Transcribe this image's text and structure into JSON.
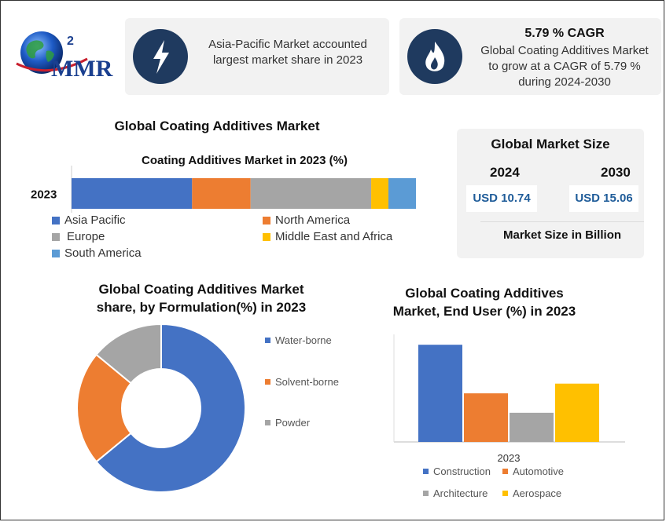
{
  "logo": {
    "text": "MMR"
  },
  "cards": {
    "asia": {
      "text_line1": "Asia-Pacific Market accounted",
      "text_line2": "largest market share in 2023"
    },
    "cagr": {
      "title": "5.79 % CAGR",
      "text_line1": "Global Coating Additives Market",
      "text_line2": "to grow at a CAGR of 5.79 %",
      "text_line3": "during 2024-2030"
    }
  },
  "section_title": "Global Coating Additives Market",
  "market_size": {
    "title": "Global Market Size",
    "year1": "2024",
    "year2": "2030",
    "value1": "USD 10.74",
    "value2": "USD 15.06",
    "footer": "Market Size in Billion"
  },
  "colors": {
    "blue": "#4472c4",
    "orange": "#ed7d31",
    "gray": "#a5a5a5",
    "yellow": "#ffc000",
    "lightblue": "#5b9bd5",
    "navy": "#1f3a5f",
    "value_blue": "#1f5c99"
  },
  "chart_data": [
    {
      "type": "bar",
      "orientation": "horizontal-stacked",
      "title": "Coating Additives Market in 2023 (%)",
      "categories": [
        "2023"
      ],
      "series": [
        {
          "name": "Asia Pacific",
          "values": [
            35
          ],
          "color": "#4472c4"
        },
        {
          "name": "North America",
          "values": [
            17
          ],
          "color": "#ed7d31"
        },
        {
          "name": "Europe",
          "values": [
            35
          ],
          "color": "#a5a5a5"
        },
        {
          "name": "Middle East and Africa",
          "values": [
            5
          ],
          "color": "#ffc000"
        },
        {
          "name": "South America",
          "values": [
            8
          ],
          "color": "#5b9bd5"
        }
      ],
      "xlim": [
        0,
        100
      ]
    },
    {
      "type": "pie",
      "subtype": "donut",
      "title_line1": "Global Coating Additives Market",
      "title_line2": "share, by Formulation(%) in 2023",
      "slices": [
        {
          "label": "Water-borne",
          "value": 64,
          "color": "#4472c4"
        },
        {
          "label": "Solvent-borne",
          "value": 22,
          "color": "#ed7d31"
        },
        {
          "label": "Powder",
          "value": 14,
          "color": "#a5a5a5"
        }
      ]
    },
    {
      "type": "bar",
      "title_line1": "Global Coating Additives",
      "title_line2": "Market, End User (%) in 2023",
      "categories": [
        "2023"
      ],
      "series": [
        {
          "name": "Construction",
          "values": [
            40
          ],
          "color": "#4472c4"
        },
        {
          "name": "Automotive",
          "values": [
            20
          ],
          "color": "#ed7d31"
        },
        {
          "name": "Architecture",
          "values": [
            12
          ],
          "color": "#a5a5a5"
        },
        {
          "name": "Aerospace",
          "values": [
            24
          ],
          "color": "#ffc000"
        }
      ],
      "ylim": [
        0,
        42
      ]
    }
  ]
}
